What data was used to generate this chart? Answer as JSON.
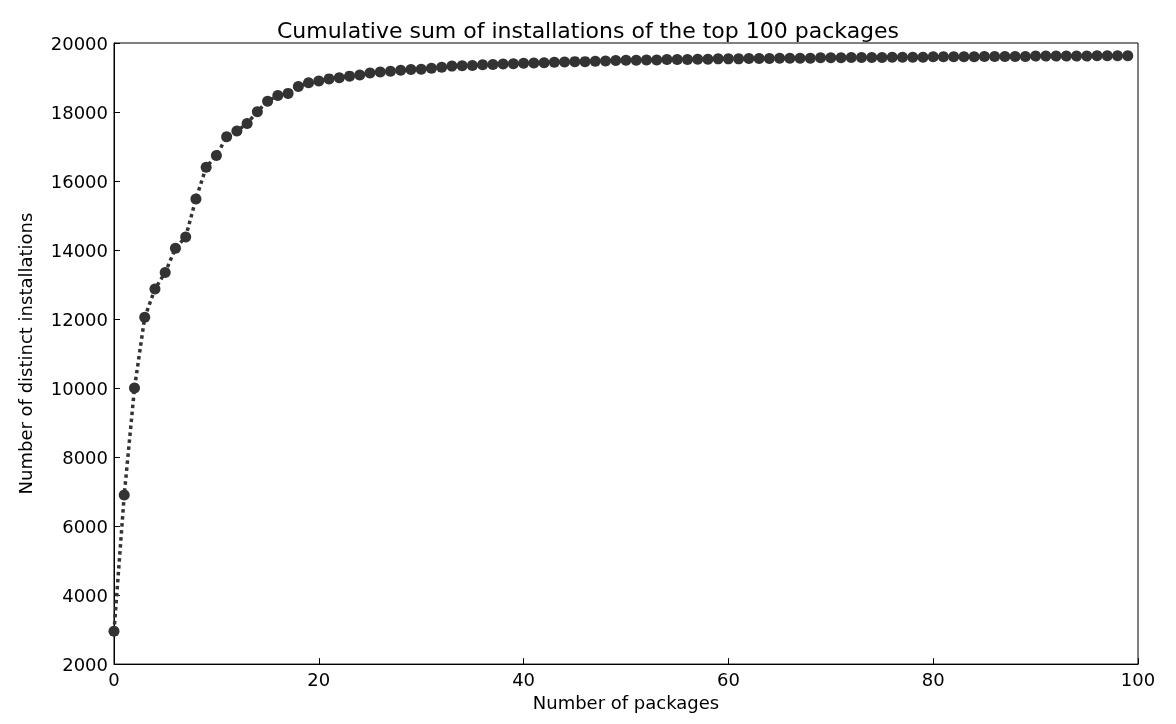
{
  "chart_data": {
    "type": "line",
    "title": "Cumulative sum of installations of the top 100 packages",
    "xlabel": "Number of packages",
    "ylabel": "Number of distinct installations",
    "x": [
      0,
      1,
      2,
      3,
      4,
      5,
      6,
      7,
      8,
      9,
      10,
      11,
      12,
      13,
      14,
      15,
      16,
      17,
      18,
      19,
      20,
      21,
      22,
      23,
      24,
      25,
      26,
      27,
      28,
      29,
      30,
      31,
      32,
      33,
      34,
      35,
      36,
      37,
      38,
      39,
      40,
      41,
      42,
      43,
      44,
      45,
      46,
      47,
      48,
      49,
      50,
      51,
      52,
      53,
      54,
      55,
      56,
      57,
      58,
      59,
      60,
      61,
      62,
      63,
      64,
      65,
      66,
      67,
      68,
      69,
      70,
      71,
      72,
      73,
      74,
      75,
      76,
      77,
      78,
      79,
      80,
      81,
      82,
      83,
      84,
      85,
      86,
      87,
      88,
      89,
      90,
      91,
      92,
      93,
      94,
      95,
      96,
      97,
      98,
      99
    ],
    "series": [
      {
        "color": "#333333",
        "values": [
          2950,
          6900,
          10000,
          12050,
          12870,
          13350,
          14050,
          14380,
          15480,
          16400,
          16740,
          17280,
          17450,
          17670,
          18010,
          18310,
          18480,
          18540,
          18740,
          18850,
          18900,
          18960,
          18990,
          19040,
          19070,
          19130,
          19160,
          19180,
          19210,
          19230,
          19240,
          19270,
          19300,
          19330,
          19340,
          19350,
          19370,
          19380,
          19390,
          19400,
          19410,
          19420,
          19430,
          19440,
          19450,
          19460,
          19460,
          19470,
          19480,
          19490,
          19500,
          19500,
          19510,
          19510,
          19520,
          19520,
          19520,
          19530,
          19530,
          19540,
          19540,
          19540,
          19550,
          19550,
          19550,
          19560,
          19560,
          19560,
          19560,
          19570,
          19570,
          19570,
          19580,
          19580,
          19580,
          19580,
          19590,
          19590,
          19590,
          19590,
          19600,
          19600,
          19600,
          19600,
          19600,
          19610,
          19610,
          19610,
          19610,
          19610,
          19620,
          19620,
          19620,
          19620,
          19620,
          19620,
          19630,
          19630,
          19630,
          19630
        ]
      }
    ],
    "xlim": [
      0,
      100
    ],
    "xticks": [
      0,
      20,
      40,
      60,
      80,
      100
    ],
    "ylim": [
      2000,
      20000
    ],
    "yticks": [
      2000,
      4000,
      6000,
      8000,
      10000,
      12000,
      14000,
      16000,
      18000,
      20000
    ],
    "grid": false,
    "marker": "circle",
    "line_style": "dotted"
  }
}
